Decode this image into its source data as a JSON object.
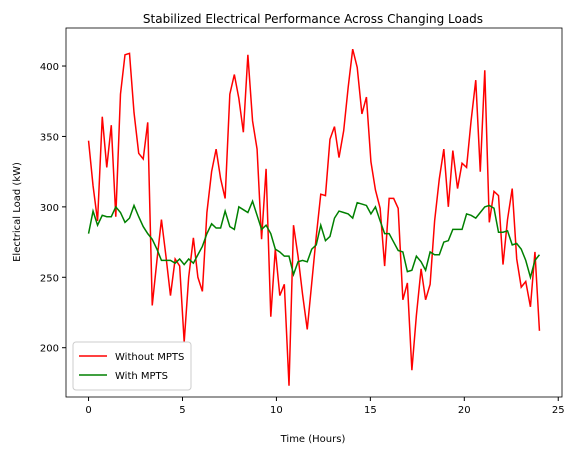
{
  "chart_data": {
    "type": "line",
    "title": "Stabilized Electrical Performance Across Changing Loads",
    "xlabel": "Time (Hours)",
    "ylabel": "Electrical Load (kW)",
    "x": [
      0,
      0.24,
      0.48,
      0.73,
      0.97,
      1.21,
      1.45,
      1.7,
      1.94,
      2.18,
      2.42,
      2.67,
      2.91,
      3.15,
      3.39,
      3.64,
      3.88,
      4.12,
      4.36,
      4.61,
      4.85,
      5.09,
      5.33,
      5.58,
      5.82,
      6.06,
      6.3,
      6.55,
      6.79,
      7.03,
      7.27,
      7.52,
      7.76,
      8.0,
      8.24,
      8.48,
      8.73,
      8.97,
      9.21,
      9.45,
      9.7,
      9.94,
      10.18,
      10.42,
      10.67,
      10.91,
      11.15,
      11.39,
      11.64,
      11.88,
      12.12,
      12.36,
      12.61,
      12.85,
      13.09,
      13.33,
      13.58,
      13.82,
      14.06,
      14.3,
      14.55,
      14.79,
      15.03,
      15.27,
      15.52,
      15.76,
      16.0,
      16.24,
      16.48,
      16.73,
      16.97,
      17.21,
      17.45,
      17.7,
      17.94,
      18.18,
      18.42,
      18.67,
      18.91,
      19.15,
      19.39,
      19.64,
      19.88,
      20.12,
      20.36,
      20.61,
      20.85,
      21.09,
      21.33,
      21.58,
      21.82,
      22.06,
      22.3,
      22.55,
      22.79,
      23.03,
      23.27,
      23.52,
      23.76,
      24.0
    ],
    "series": [
      {
        "name": "Without MPTS",
        "color": "#ff0000",
        "values": [
          347,
          315,
          290,
          364,
          328,
          358,
          293,
          380,
          408,
          409,
          367,
          338,
          334,
          360,
          230,
          262,
          291,
          265,
          237,
          263,
          258,
          204,
          250,
          278,
          250,
          240,
          296,
          325,
          341,
          320,
          306,
          380,
          394,
          377,
          353,
          408,
          361,
          341,
          277,
          327,
          222,
          270,
          237,
          245,
          173,
          287,
          265,
          238,
          213,
          246,
          279,
          309,
          308,
          348,
          357,
          335,
          354,
          385,
          412,
          399,
          366,
          378,
          332,
          312,
          299,
          258,
          306,
          306,
          299,
          234,
          246,
          184,
          223,
          256,
          234,
          245,
          290,
          320,
          341,
          300,
          340,
          313,
          331,
          328,
          361,
          390,
          325,
          397,
          289,
          311,
          308,
          259,
          291,
          313,
          263,
          243,
          247,
          229,
          268,
          212
        ]
      },
      {
        "name": "With MPTS",
        "color": "#008000",
        "values": [
          281,
          297,
          287,
          294,
          293,
          293,
          300,
          296,
          289,
          292,
          301,
          293,
          286,
          281,
          277,
          270,
          262,
          262,
          262,
          260,
          263,
          259,
          263,
          260,
          266,
          272,
          281,
          288,
          285,
          285,
          297,
          286,
          284,
          300,
          298,
          296,
          304,
          294,
          284,
          287,
          281,
          270,
          268,
          265,
          265,
          252,
          261,
          262,
          261,
          270,
          273,
          287,
          276,
          279,
          292,
          297,
          296,
          295,
          292,
          303,
          302,
          301,
          295,
          300,
          290,
          281,
          281,
          275,
          269,
          268,
          254,
          255,
          265,
          261,
          255,
          268,
          266,
          266,
          275,
          276,
          284,
          284,
          284,
          295,
          294,
          292,
          296,
          300,
          301,
          299,
          282,
          282,
          283,
          273,
          274,
          270,
          262,
          250,
          262,
          266
        ]
      }
    ],
    "xlim": [
      -1.2,
      25.2
    ],
    "xticks": [
      0,
      5,
      10,
      15,
      20,
      25
    ],
    "ylim": [
      165,
      427
    ],
    "yticks": [
      200,
      250,
      300,
      350,
      400
    ],
    "legend": "lower left"
  }
}
